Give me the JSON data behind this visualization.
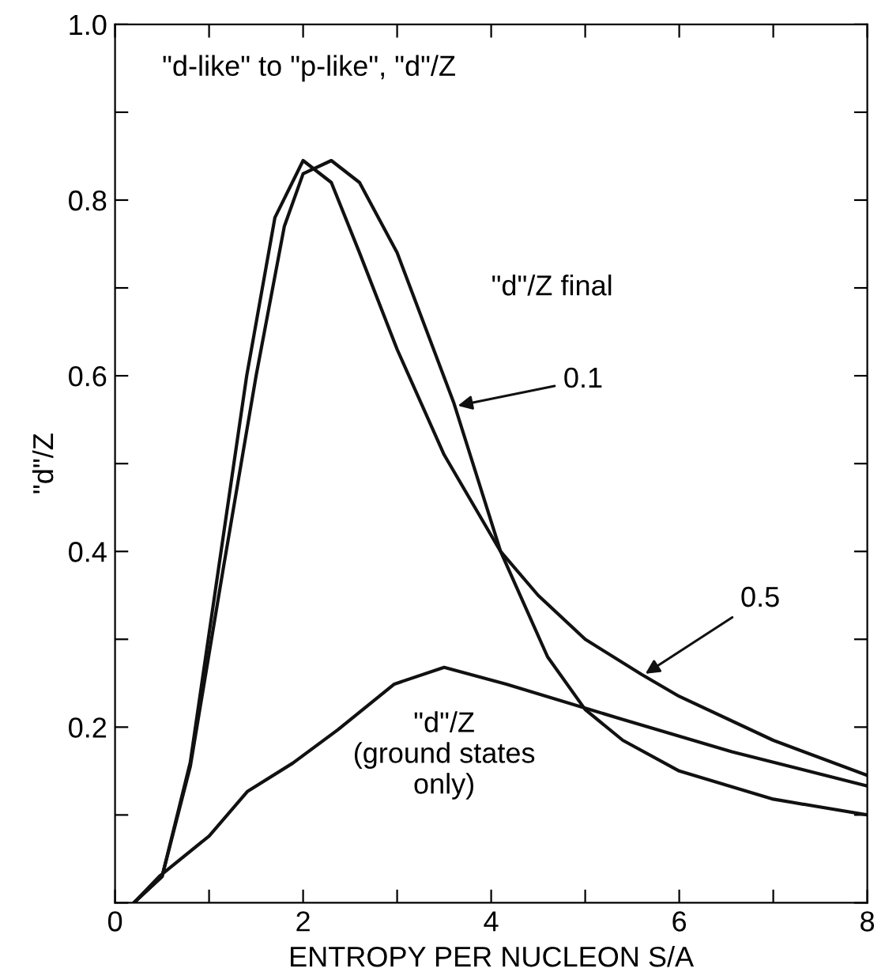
{
  "chart_data": {
    "type": "line",
    "title": "\"d-like\" to \"p-like\", \"d\"/Z",
    "xlabel": "ENTROPY PER NUCLEON S/A",
    "ylabel": "\"d\"/Z",
    "xlim": [
      0,
      8
    ],
    "ylim": [
      0,
      1
    ],
    "xticks": [
      0,
      {
        "value": 1,
        "label": null
      },
      2,
      {
        "value": 3,
        "label": null
      },
      4,
      {
        "value": 5,
        "label": null
      },
      6,
      {
        "value": 7,
        "label": null
      },
      8
    ],
    "yticks": [
      {
        "value": 0,
        "label": null
      },
      {
        "value": 0.1,
        "label": null
      },
      0.2,
      {
        "value": 0.3,
        "label": null
      },
      0.4,
      {
        "value": 0.5,
        "label": null
      },
      0.6,
      {
        "value": 0.7,
        "label": null
      },
      0.8,
      {
        "value": 0.9,
        "label": null
      },
      {
        "value": 1,
        "label": "1.0"
      }
    ],
    "grid": false,
    "legend": false,
    "marker": "none",
    "line_style": "solid",
    "series": [
      {
        "color": "#111111",
        "x": [
          0.2,
          0.5,
          0.8,
          1.1,
          1.4,
          1.7,
          2.0,
          2.3,
          2.6,
          3.0,
          3.5,
          4.1,
          4.5,
          5.0,
          5.6,
          6.0,
          7.0,
          8.0
        ],
        "values": [
          0,
          0.03,
          0.16,
          0.38,
          0.6,
          0.78,
          0.845,
          0.82,
          0.74,
          0.63,
          0.51,
          0.4,
          0.35,
          0.3,
          0.26,
          0.235,
          0.185,
          0.145
        ]
      },
      {
        "color": "#111111",
        "x": [
          0.2,
          0.5,
          0.8,
          1.15,
          1.5,
          1.8,
          2.0,
          2.3,
          2.6,
          3.0,
          3.6,
          4.1,
          4.6,
          5.0,
          5.4,
          6.0,
          7.0,
          8.0
        ],
        "values": [
          0,
          0.03,
          0.155,
          0.38,
          0.6,
          0.77,
          0.83,
          0.845,
          0.82,
          0.74,
          0.57,
          0.4,
          0.28,
          0.22,
          0.185,
          0.15,
          0.118,
          0.1
        ]
      },
      {
        "color": "#111111",
        "x": [
          0.2,
          0.48,
          1.0,
          1.41,
          1.89,
          2.37,
          2.97,
          3.5,
          4.16,
          5.36,
          6.56,
          8.0
        ],
        "values": [
          0,
          0.031,
          0.076,
          0.127,
          0.159,
          0.197,
          0.249,
          0.268,
          0.249,
          0.21,
          0.172,
          0.133
        ]
      }
    ],
    "annotations": [
      {
        "text": "0.1",
        "x": 3.6,
        "y": 0.565
      },
      {
        "text": "0.5",
        "x": 5.6,
        "y": 0.258
      },
      "\"d\"/Z final",
      {
        "text": "\"d\"/Z\n(ground states\nonly)",
        "x": 3.5,
        "y": 0.268
      }
    ]
  }
}
